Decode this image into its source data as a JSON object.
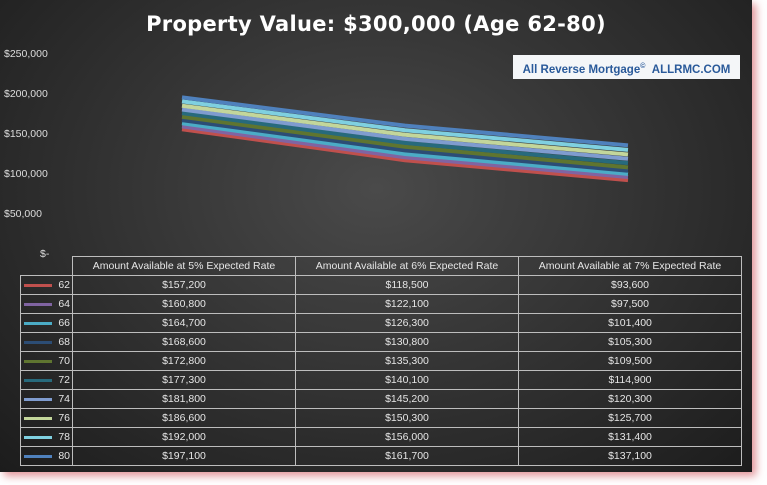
{
  "title": "Property Value: $300,000  (Age 62-80)",
  "badge": {
    "brand": "All Reverse Mortgage",
    "mark": "©",
    "site": "ALLRMC.COM"
  },
  "chart_data": {
    "type": "line",
    "title": "Property Value: $300,000  (Age 62-80)",
    "categories": [
      "Amount Available at 5% Expected Rate",
      "Amount Available at 6% Expected Rate",
      "Amount Available at 7% Expected Rate"
    ],
    "ylim": [
      0,
      250000
    ],
    "yticks": [
      250000,
      200000,
      150000,
      100000,
      50000,
      0
    ],
    "ytick_labels": [
      "$250,000",
      "$200,000",
      "$150,000",
      "$100,000",
      "$50,000",
      "$-"
    ],
    "legend_placement": "data-table",
    "series": [
      {
        "name": "62",
        "color": "#c0504d",
        "values": [
          157200,
          118500,
          93600
        ],
        "labels": [
          "$157,200",
          "$118,500",
          "$93,600"
        ]
      },
      {
        "name": "64",
        "color": "#8064a2",
        "values": [
          160800,
          122100,
          97500
        ],
        "labels": [
          "$160,800",
          "$122,100",
          "$97,500"
        ]
      },
      {
        "name": "66",
        "color": "#4bacc6",
        "values": [
          164700,
          126300,
          101400
        ],
        "labels": [
          "$164,700",
          "$126,300",
          "$101,400"
        ]
      },
      {
        "name": "68",
        "color": "#2c4d75",
        "values": [
          168600,
          130800,
          105300
        ],
        "labels": [
          "$168,600",
          "$130,800",
          "$105,300"
        ]
      },
      {
        "name": "70",
        "color": "#5f7530",
        "values": [
          172800,
          135300,
          109500
        ],
        "labels": [
          "$172,800",
          "$135,300",
          "$109,500"
        ]
      },
      {
        "name": "72",
        "color": "#276a7c",
        "values": [
          177300,
          140100,
          114900
        ],
        "labels": [
          "$177,300",
          "$140,100",
          "$114,900"
        ]
      },
      {
        "name": "74",
        "color": "#7f9ccf",
        "values": [
          181800,
          145200,
          120300
        ],
        "labels": [
          "$181,800",
          "$145,200",
          "$120,300"
        ]
      },
      {
        "name": "76",
        "color": "#c3d69b",
        "values": [
          186600,
          150300,
          125700
        ],
        "labels": [
          "$186,600",
          "$150,300",
          "$125,700"
        ]
      },
      {
        "name": "78",
        "color": "#7fd0e0",
        "values": [
          192000,
          156000,
          131400
        ],
        "labels": [
          "$192,000",
          "$156,000",
          "$131,400"
        ]
      },
      {
        "name": "80",
        "color": "#4f81bd",
        "values": [
          197100,
          161700,
          137100
        ],
        "labels": [
          "$197,100",
          "$161,700",
          "$137,100"
        ]
      }
    ]
  }
}
